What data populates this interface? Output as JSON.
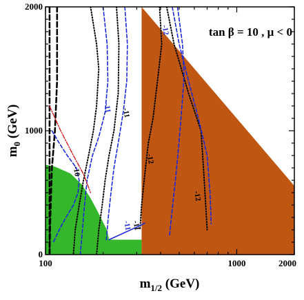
{
  "chart_data": {
    "type": "line",
    "title": "",
    "xlabel": "m",
    "xlabel_sub": "1/2",
    "xlabel_unit": " (GeV)",
    "ylabel": "m",
    "ylabel_sub": "0",
    "ylabel_unit": " (GeV)",
    "xlim": [
      100,
      2000
    ],
    "ylim": [
      0,
      2000
    ],
    "x_ticks": [
      {
        "value": 100,
        "label": "100"
      },
      {
        "value": 1000,
        "label": "1000"
      },
      {
        "value": 2000,
        "label": "2000"
      }
    ],
    "y_ticks": [
      {
        "value": 0,
        "label": "0"
      },
      {
        "value": 1000,
        "label": "1000"
      },
      {
        "value": 2000,
        "label": "2000"
      }
    ],
    "annotation": "tan β = 10 ,  μ < 0",
    "colors": {
      "excluded_region": "#bf5612",
      "favoured_region": "#35b72c",
      "black_contours": "#000000",
      "blue_contours": "#1c29d6",
      "red_line": "#d11c1c",
      "green_edge": "#2a7a2a"
    },
    "regions": [
      {
        "name": "excluded",
        "color": "#bf5612",
        "points": [
          [
            318,
            2000
          ],
          [
            2000,
            555
          ],
          [
            2000,
            0
          ],
          [
            318,
            0
          ]
        ]
      },
      {
        "name": "favoured",
        "color": "#35b72c",
        "points": [
          [
            100,
            0
          ],
          [
            100,
            725
          ],
          [
            112,
            710
          ],
          [
            135,
            655
          ],
          [
            155,
            565
          ],
          [
            172,
            455
          ],
          [
            185,
            365
          ],
          [
            198,
            275
          ],
          [
            210,
            195
          ],
          [
            215,
            120
          ],
          [
            318,
            120
          ],
          [
            318,
            0
          ]
        ]
      }
    ],
    "series": [
      {
        "label": "",
        "color": "#000000",
        "style": "thick-dash",
        "points": [
          [
            105,
            0
          ],
          [
            105,
            2000
          ]
        ]
      },
      {
        "label": "",
        "color": "#000000",
        "style": "thick-dash",
        "points": [
          [
            115,
            2000
          ],
          [
            115,
            1400
          ],
          [
            112,
            1000
          ],
          [
            108,
            700
          ],
          [
            106,
            300
          ],
          [
            105,
            0
          ]
        ]
      },
      {
        "label": "-10",
        "color": "#000000",
        "style": "dot",
        "points": [
          [
            172,
            2000
          ],
          [
            185,
            1700
          ],
          [
            190,
            1500
          ],
          [
            185,
            1200
          ],
          [
            178,
            1000
          ],
          [
            168,
            800
          ],
          [
            158,
            600
          ],
          [
            150,
            400
          ],
          [
            143,
            200
          ],
          [
            140,
            0
          ]
        ]
      },
      {
        "label": "-11",
        "color": "#000000",
        "style": "dot",
        "points": [
          [
            235,
            2000
          ],
          [
            242,
            1700
          ],
          [
            240,
            1300
          ],
          [
            228,
            1000
          ],
          [
            215,
            800
          ],
          [
            205,
            600
          ],
          [
            198,
            400
          ],
          [
            190,
            200
          ],
          [
            185,
            0
          ]
        ]
      },
      {
        "label": "-12",
        "color": "#000000",
        "style": "dot",
        "points": [
          [
            395,
            2000
          ],
          [
            405,
            1700
          ],
          [
            385,
            1400
          ],
          [
            365,
            1100
          ],
          [
            345,
            900
          ],
          [
            328,
            600
          ],
          [
            318,
            400
          ],
          [
            312,
            200
          ]
        ]
      },
      {
        "label": "-12",
        "color": "#000000",
        "style": "dot",
        "points": [
          [
            430,
            2000
          ],
          [
            470,
            1700
          ],
          [
            560,
            1300
          ],
          [
            650,
            1000
          ],
          [
            670,
            700
          ],
          [
            688,
            400
          ],
          [
            700,
            200
          ]
        ]
      },
      {
        "label": "-11",
        "color": "#1c29d6",
        "style": "dash",
        "points": [
          [
            200,
            2000
          ],
          [
            210,
            1700
          ],
          [
            212,
            1400
          ],
          [
            205,
            1150
          ],
          [
            190,
            950
          ],
          [
            176,
            800
          ],
          [
            165,
            600
          ],
          [
            160,
            400
          ],
          [
            156,
            200
          ],
          [
            152,
            0
          ]
        ]
      },
      {
        "label": "-11",
        "color": "#1c29d6",
        "style": "dash",
        "points": [
          [
            260,
            2000
          ],
          [
            268,
            1700
          ],
          [
            266,
            1400
          ],
          [
            255,
            1150
          ],
          [
            240,
            900
          ],
          [
            228,
            700
          ],
          [
            220,
            500
          ],
          [
            213,
            300
          ],
          [
            208,
            120
          ]
        ]
      },
      {
        "label": "-12",
        "color": "#1c29d6",
        "style": "dash",
        "points": [
          [
            490,
            2000
          ],
          [
            520,
            1700
          ],
          [
            530,
            1450
          ],
          [
            520,
            1250
          ],
          [
            505,
            1000
          ],
          [
            485,
            700
          ],
          [
            470,
            500
          ],
          [
            455,
            300
          ],
          [
            445,
            150
          ]
        ]
      },
      {
        "label": "-12",
        "color": "#1c29d6",
        "style": "dash",
        "points": [
          [
            460,
            2000
          ],
          [
            500,
            1700
          ],
          [
            560,
            1400
          ],
          [
            630,
            1100
          ],
          [
            700,
            800
          ],
          [
            725,
            500
          ],
          [
            735,
            250
          ]
        ]
      },
      {
        "label": "",
        "color": "#1c29d6",
        "style": "solid",
        "points": [
          [
            215,
            120
          ],
          [
            318,
            240
          ],
          [
            330,
            255
          ]
        ]
      },
      {
        "label": "-10",
        "color": "#1c29d6",
        "style": "dash",
        "points": [
          [
            108,
            1000
          ],
          [
            118,
            900
          ],
          [
            130,
            800
          ],
          [
            145,
            700
          ],
          [
            150,
            600
          ],
          [
            148,
            500
          ],
          [
            140,
            400
          ],
          [
            128,
            300
          ],
          [
            118,
            200
          ],
          [
            110,
            100
          ]
        ]
      },
      {
        "label": "",
        "color": "#d11c1c",
        "style": "dash-dot",
        "points": [
          [
            105,
            1200
          ],
          [
            120,
            1000
          ],
          [
            140,
            800
          ],
          [
            158,
            650
          ],
          [
            172,
            500
          ]
        ]
      }
    ],
    "contour_labels": [
      {
        "text": "-12",
        "x": 408,
        "y": 1850,
        "color": "#1c29d6"
      },
      {
        "text": "-11",
        "x": 203,
        "y": 1220,
        "color": "#1c29d6"
      },
      {
        "text": "-11",
        "x": 255,
        "y": 1180,
        "color": "#000000"
      },
      {
        "text": "-12",
        "x": 340,
        "y": 810,
        "color": "#000000"
      },
      {
        "text": "-12",
        "x": 600,
        "y": 510,
        "color": "#000000"
      },
      {
        "text": "-10",
        "x": 140,
        "y": 710,
        "color": "#000000"
      },
      {
        "text": "-11",
        "x": 258,
        "y": 270,
        "color": "#1c29d6"
      },
      {
        "text": "-11",
        "x": 288,
        "y": 270,
        "color": "#000000"
      }
    ]
  }
}
